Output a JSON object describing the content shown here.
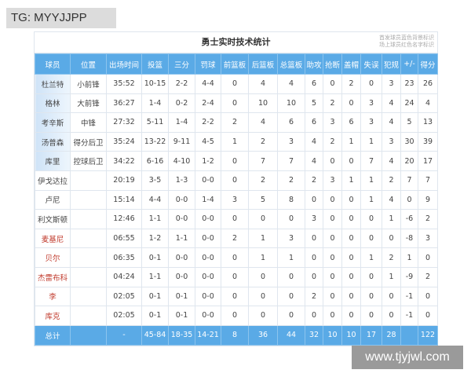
{
  "watermark_top": "TG: MYYJJPP",
  "watermark_bottom": "www.tjyjwl.com",
  "title": "勇士实时技术统计",
  "note": [
    "首发球员蓝色背景标识",
    "场上球员红色名字标识"
  ],
  "colors": {
    "header_bg": "#5aaae6",
    "starter_bg": "#cfe3f7",
    "oncourt_name": "#c0392b"
  },
  "columns": [
    "球员",
    "位置",
    "出场时间",
    "投篮",
    "三分",
    "罚球",
    "前篮板",
    "后篮板",
    "总篮板",
    "助攻",
    "抢断",
    "盖帽",
    "失误",
    "犯规",
    "+/-",
    "得分"
  ],
  "rows": [
    {
      "starter": true,
      "oncourt": false,
      "cells": [
        "杜兰特",
        "小前锋",
        "35:52",
        "10-15",
        "2-2",
        "4-4",
        "0",
        "4",
        "4",
        "6",
        "0",
        "2",
        "0",
        "3",
        "23",
        "26"
      ]
    },
    {
      "starter": true,
      "oncourt": false,
      "cells": [
        "格林",
        "大前锋",
        "36:27",
        "1-4",
        "0-2",
        "2-4",
        "0",
        "10",
        "10",
        "5",
        "2",
        "0",
        "3",
        "4",
        "24",
        "4"
      ]
    },
    {
      "starter": true,
      "oncourt": false,
      "cells": [
        "考辛斯",
        "中锋",
        "27:32",
        "5-11",
        "1-4",
        "2-2",
        "2",
        "4",
        "6",
        "6",
        "3",
        "6",
        "3",
        "4",
        "5",
        "13"
      ]
    },
    {
      "starter": true,
      "oncourt": false,
      "cells": [
        "汤普森",
        "得分后卫",
        "35:24",
        "13-22",
        "9-11",
        "4-5",
        "1",
        "2",
        "3",
        "4",
        "2",
        "1",
        "1",
        "3",
        "30",
        "39"
      ]
    },
    {
      "starter": true,
      "oncourt": false,
      "cells": [
        "库里",
        "控球后卫",
        "34:22",
        "6-16",
        "4-10",
        "1-2",
        "0",
        "7",
        "7",
        "4",
        "0",
        "0",
        "7",
        "4",
        "20",
        "17"
      ]
    },
    {
      "starter": false,
      "oncourt": false,
      "cells": [
        "伊戈达拉",
        "",
        "20:19",
        "3-5",
        "1-3",
        "0-0",
        "0",
        "2",
        "2",
        "2",
        "3",
        "1",
        "1",
        "2",
        "7",
        "7"
      ]
    },
    {
      "starter": false,
      "oncourt": false,
      "cells": [
        "卢尼",
        "",
        "15:14",
        "4-4",
        "0-0",
        "1-4",
        "3",
        "5",
        "8",
        "0",
        "0",
        "0",
        "1",
        "4",
        "0",
        "9"
      ]
    },
    {
      "starter": false,
      "oncourt": false,
      "cells": [
        "利文斯顿",
        "",
        "12:46",
        "1-1",
        "0-0",
        "0-0",
        "0",
        "0",
        "0",
        "3",
        "0",
        "0",
        "0",
        "1",
        "-6",
        "2"
      ]
    },
    {
      "starter": false,
      "oncourt": true,
      "cells": [
        "麦基尼",
        "",
        "06:55",
        "1-2",
        "1-1",
        "0-0",
        "2",
        "1",
        "3",
        "0",
        "0",
        "0",
        "0",
        "0",
        "-8",
        "3"
      ]
    },
    {
      "starter": false,
      "oncourt": true,
      "cells": [
        "贝尔",
        "",
        "06:35",
        "0-1",
        "0-0",
        "0-0",
        "0",
        "1",
        "1",
        "0",
        "0",
        "0",
        "1",
        "2",
        "1",
        "0"
      ]
    },
    {
      "starter": false,
      "oncourt": true,
      "cells": [
        "杰雷布科",
        "",
        "04:24",
        "1-1",
        "0-0",
        "0-0",
        "0",
        "0",
        "0",
        "0",
        "0",
        "0",
        "0",
        "1",
        "-9",
        "2"
      ]
    },
    {
      "starter": false,
      "oncourt": true,
      "cells": [
        "李",
        "",
        "02:05",
        "0-1",
        "0-1",
        "0-0",
        "0",
        "0",
        "0",
        "2",
        "0",
        "0",
        "0",
        "0",
        "-1",
        "0"
      ]
    },
    {
      "starter": false,
      "oncourt": true,
      "cells": [
        "库克",
        "",
        "02:05",
        "0-1",
        "0-1",
        "0-0",
        "0",
        "0",
        "0",
        "0",
        "0",
        "0",
        "0",
        "0",
        "-1",
        "0"
      ]
    }
  ],
  "totals": [
    "总计",
    "",
    "-",
    "45-84",
    "18-35",
    "14-21",
    "8",
    "36",
    "44",
    "32",
    "10",
    "10",
    "17",
    "28",
    "",
    "122"
  ]
}
